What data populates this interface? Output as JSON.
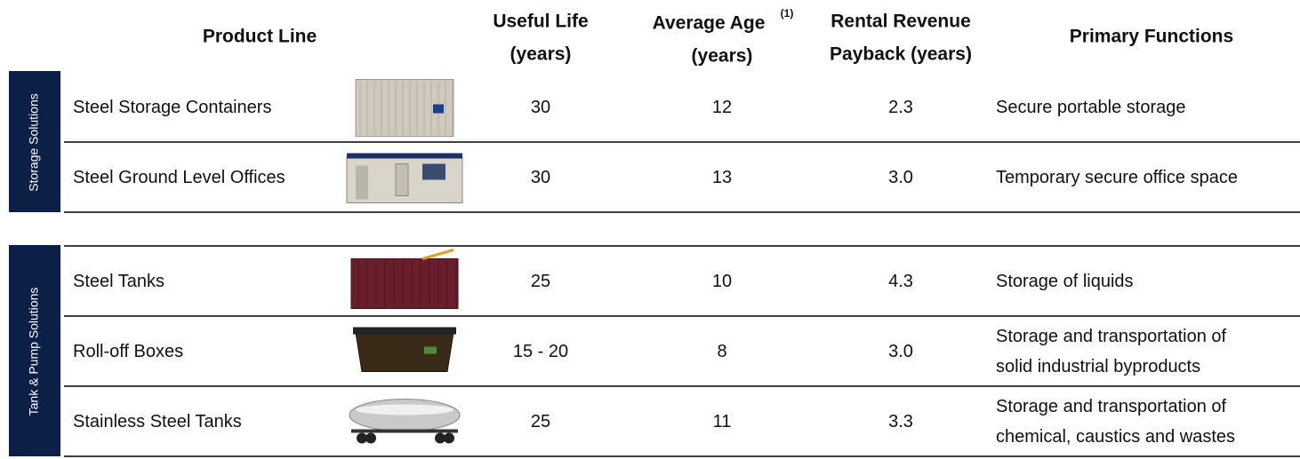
{
  "header": {
    "product_line": "Product Line",
    "useful_life": [
      "Useful Life",
      "(years)"
    ],
    "average_age": [
      "Average Age",
      "(years)"
    ],
    "average_age_note": "(1)",
    "payback": [
      "Rental Revenue",
      "Payback (years)"
    ],
    "functions": "Primary Functions"
  },
  "groups": [
    {
      "label": "Storage Solutions",
      "rows": [
        {
          "name": "Steel Storage Containers",
          "useful_life": "30",
          "average_age": "12",
          "payback": "2.3",
          "functions": [
            "Secure portable storage"
          ]
        },
        {
          "name": "Steel Ground Level Offices",
          "useful_life": "30",
          "average_age": "13",
          "payback": "3.0",
          "functions": [
            "Temporary secure office space"
          ]
        }
      ]
    },
    {
      "label": "Tank & Pump Solutions",
      "rows": [
        {
          "name": "Steel Tanks",
          "useful_life": "25",
          "average_age": "10",
          "payback": "4.3",
          "functions": [
            "Storage of liquids"
          ]
        },
        {
          "name": "Roll-off Boxes",
          "useful_life": "15 - 20",
          "average_age": "8",
          "payback": "3.0",
          "functions": [
            "Storage and transportation of",
            "solid industrial byproducts"
          ]
        },
        {
          "name": "Stainless Steel Tanks",
          "useful_life": "25",
          "average_age": "11",
          "payback": "3.3",
          "functions": [
            "Storage and transportation of",
            "chemical, caustics and wastes"
          ]
        }
      ]
    }
  ]
}
